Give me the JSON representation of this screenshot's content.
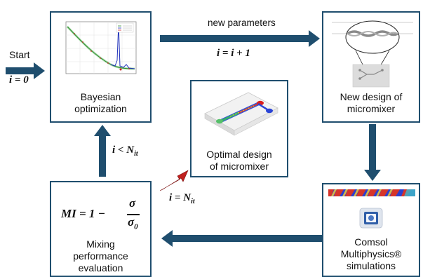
{
  "start": {
    "label": "Start",
    "init": "i = 0"
  },
  "top_arrow": {
    "label": "new parameters",
    "update": "i = i + 1"
  },
  "bayes": {
    "line1": "Bayesian",
    "line2": "optimization"
  },
  "new_design": {
    "line1": "New design of",
    "line2": "micromixer"
  },
  "optimal": {
    "line1": "Optimal design",
    "line2": "of micromixer"
  },
  "comsol": {
    "line1": "Comsol",
    "line2": "Multiphysics®",
    "line3": "simulations"
  },
  "mixing": {
    "line1": "Mixing",
    "line2": "performance",
    "line3": "evaluation"
  },
  "loop_condition": "i < N",
  "loop_condition_sub": "it",
  "exit_condition": "i = N",
  "exit_condition_sub": "it",
  "formula": {
    "lhs": "MI = 1 −",
    "numerator": "σ",
    "denominator": "σ",
    "denominator_sub": "0"
  },
  "colors": {
    "box_border": "#1f4e6e",
    "arrow_dark": "#1f4e6e",
    "arrow_red": "#c0201e"
  }
}
